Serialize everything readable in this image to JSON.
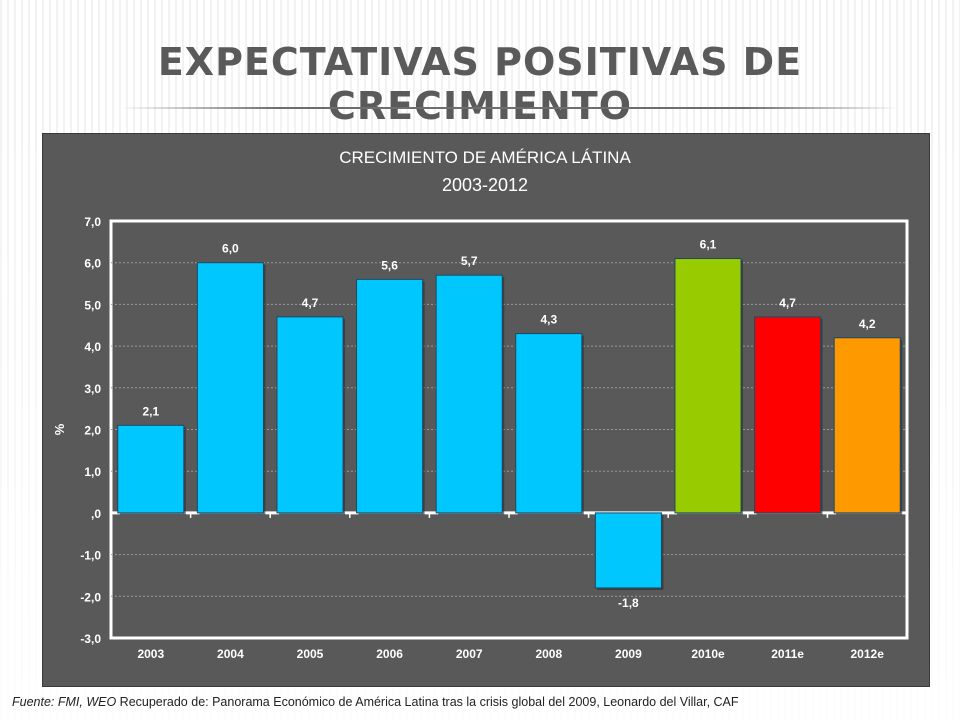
{
  "slide": {
    "title": "EXPECTATIVAS POSITIVAS DE CRECIMIENTO"
  },
  "footnote": {
    "source_italic": "Fuente: FMI, WEO",
    "text": " Recuperado de: Panorama Económico de América Latina tras la crisis global del 2009,  Leonardo del Villar, CAF"
  },
  "chart_data": {
    "type": "bar",
    "title": "CRECIMIENTO DE AMÉRICA LÁTINA",
    "subtitle": "2003-2012",
    "ylabel": "%",
    "xlabel": "",
    "ylim": [
      -3.0,
      7.0
    ],
    "yticks": [
      "7,0",
      "6,0",
      "5,0",
      "4,0",
      "3,0",
      "2,0",
      "1,0",
      ",0",
      "-1,0",
      "-2,0",
      "-3,0"
    ],
    "categories": [
      "2003",
      "2004",
      "2005",
      "2006",
      "2007",
      "2008",
      "2009",
      "2010e",
      "2011e",
      "2012e"
    ],
    "values": [
      2.1,
      6.0,
      4.7,
      5.6,
      5.7,
      4.3,
      -1.8,
      6.1,
      4.7,
      4.2
    ],
    "value_labels": [
      "2,1",
      "6,0",
      "4,7",
      "5,6",
      "5,7",
      "4,3",
      "-1,8",
      "6,1",
      "4,7",
      "4,2"
    ],
    "colors": [
      "#00c8ff",
      "#00c8ff",
      "#00c8ff",
      "#00c8ff",
      "#00c8ff",
      "#00c8ff",
      "#00c8ff",
      "#99cc00",
      "#ff0000",
      "#ff9900"
    ],
    "grid": true,
    "legend": "none"
  }
}
